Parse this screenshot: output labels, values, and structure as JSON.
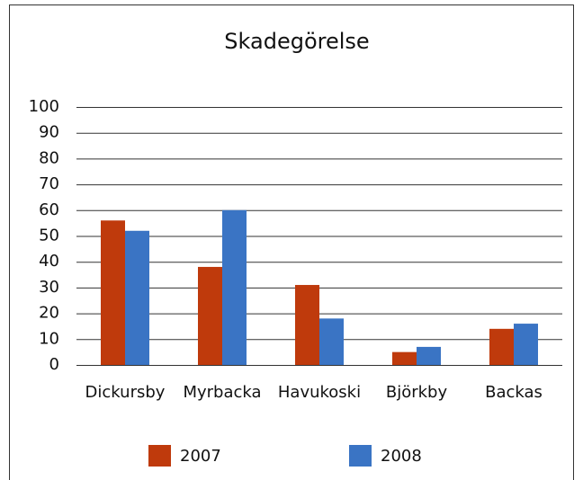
{
  "chart_data": {
    "type": "bar",
    "title": "Skadegörelse",
    "categories": [
      "Dickursby",
      "Myrbacka",
      "Havukoski",
      "Björkby",
      "Backas"
    ],
    "series": [
      {
        "name": "2007",
        "color": "#bf3a0c",
        "values": [
          56,
          38,
          31,
          5,
          14
        ]
      },
      {
        "name": "2008",
        "color": "#3a74c4",
        "values": [
          52,
          60,
          18,
          7,
          16
        ]
      }
    ],
    "ylim": [
      0,
      100
    ],
    "yticks": [
      0,
      10,
      20,
      30,
      40,
      50,
      60,
      70,
      80,
      90,
      100
    ],
    "grid": true,
    "legend": "bottom"
  }
}
